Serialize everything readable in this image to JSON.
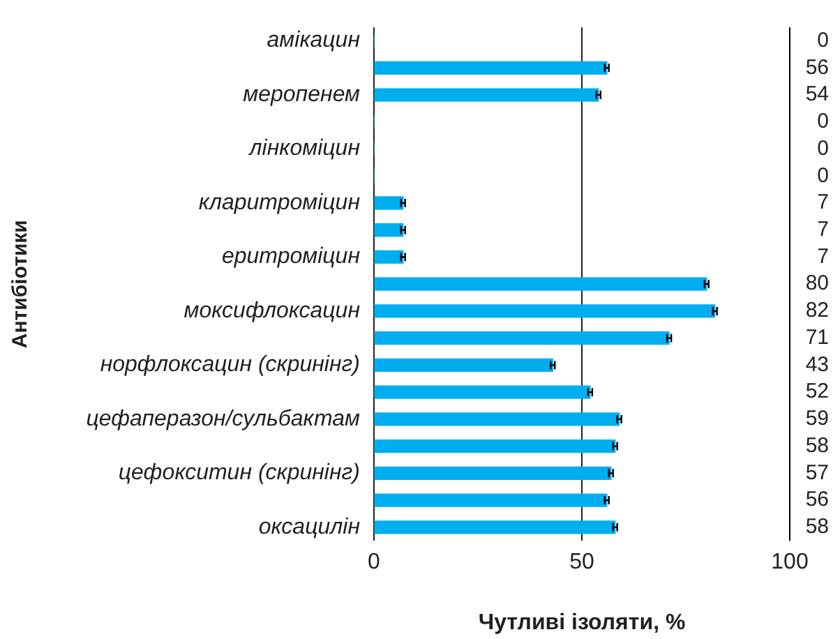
{
  "chart_data": {
    "type": "bar",
    "orientation": "horizontal",
    "ylabel": "Антибіотики",
    "xlabel": "Чутливі ізоляти, %",
    "categories": [
      "амікацин",
      null,
      "меропенем",
      null,
      "лінкоміцин",
      null,
      "кларитроміцин",
      null,
      "еритроміцин",
      null,
      "моксифлоксацин",
      null,
      "норфлоксацин (скринінг)",
      null,
      "цефаперазон/сульбактам",
      null,
      "цефокситин (скринінг)",
      null,
      "оксацилін"
    ],
    "values": [
      0,
      56,
      54,
      0,
      0,
      0,
      7,
      7,
      7,
      80,
      82,
      71,
      43,
      52,
      59,
      58,
      57,
      56,
      58
    ],
    "errors": [
      null,
      0.5,
      0.5,
      null,
      null,
      null,
      0.5,
      0.5,
      0.5,
      0.5,
      0.5,
      0.5,
      0.5,
      0.5,
      0.5,
      0.5,
      0.5,
      0.5,
      0.5
    ],
    "color": "#00aeef",
    "xlim": [
      0,
      100
    ],
    "xticks": [
      0,
      50,
      100
    ],
    "grid": "x",
    "data_labels": true,
    "legend": false
  }
}
